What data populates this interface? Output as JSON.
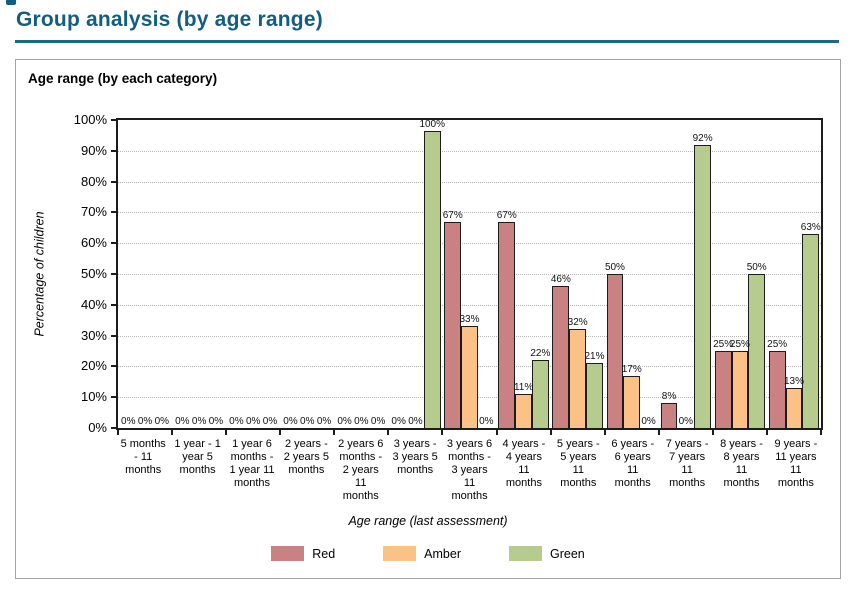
{
  "page": {
    "title": "Group analysis (by age range)"
  },
  "panel": {
    "header": "Age range (by each category)"
  },
  "colors": {
    "accent_teal": "#135e7e",
    "rule_teal": "#1d6b87",
    "bar_border": "#1c1c1c",
    "red": "#c98181",
    "amber": "#fbc186",
    "green": "#b5cc8e"
  },
  "chart_data": {
    "type": "bar",
    "title": "Age range (by each category)",
    "xlabel": "Age range (last assessment)",
    "ylabel": "Percentage of children",
    "ylim": [
      0,
      100
    ],
    "ytick_step": 10,
    "ytick_suffix": "%",
    "value_label_suffix": "%",
    "grid": true,
    "legend_position": "bottom",
    "categories": [
      "5 months - 11 months",
      "1 year - 1 year 5 months",
      "1 year 6 months - 1 year 11 months",
      "2 years - 2 years 5 months",
      "2 years 6 months - 2 years 11 months",
      "3 years - 3 years 5 months",
      "3 years 6 months - 3 years 11 months",
      "4 years - 4 years 11 months",
      "5 years - 5 years 11 months",
      "6 years - 6 years 11 months",
      "7 years - 7 years 11 months",
      "8 years - 8 years 11 months",
      "9 years - 11 years 11 months"
    ],
    "series": [
      {
        "name": "Red",
        "color": "#c98181",
        "values": [
          0,
          0,
          0,
          0,
          0,
          0,
          67,
          67,
          46,
          50,
          8,
          25,
          25
        ]
      },
      {
        "name": "Amber",
        "color": "#fbc186",
        "values": [
          0,
          0,
          0,
          0,
          0,
          0,
          33,
          11,
          32,
          17,
          0,
          25,
          13
        ]
      },
      {
        "name": "Green",
        "color": "#b5cc8e",
        "values": [
          0,
          0,
          0,
          0,
          0,
          100,
          0,
          22,
          21,
          0,
          92,
          50,
          63
        ]
      }
    ]
  }
}
